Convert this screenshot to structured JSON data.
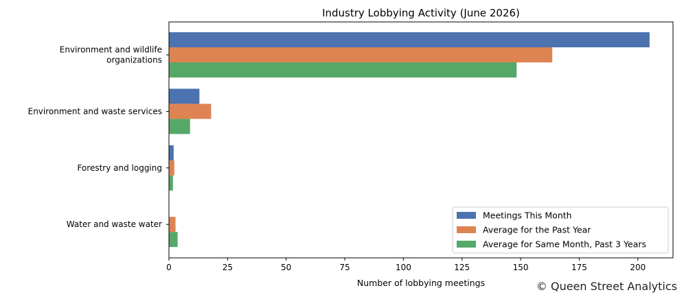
{
  "chart_data": {
    "type": "bar",
    "orientation": "horizontal",
    "title": "Industry Lobbying Activity (June 2026)",
    "xlabel": "Number of lobbying meetings",
    "ylabel": "",
    "xlim": [
      0,
      215
    ],
    "xticks": [
      0,
      25,
      50,
      75,
      100,
      125,
      150,
      175,
      200
    ],
    "categories": [
      [
        "Environment and wildlife",
        "organizations"
      ],
      [
        "Environment and waste services"
      ],
      [
        "Forestry and logging"
      ],
      [
        "Water and waste water"
      ]
    ],
    "series": [
      {
        "name": "Meetings This Month",
        "color": "#4c72b0",
        "values": [
          205,
          13,
          2,
          0
        ]
      },
      {
        "name": "Average for the Past Year",
        "color": "#dd8452",
        "values": [
          163.5,
          18,
          2.3,
          2.8
        ]
      },
      {
        "name": "Average for Same Month, Past 3 Years",
        "color": "#55a868",
        "values": [
          148.3,
          9,
          1.7,
          3.7
        ]
      }
    ],
    "grid": false,
    "legend_position": "bottom-right"
  },
  "footer": {
    "copyright": "© Queen Street Analytics"
  }
}
